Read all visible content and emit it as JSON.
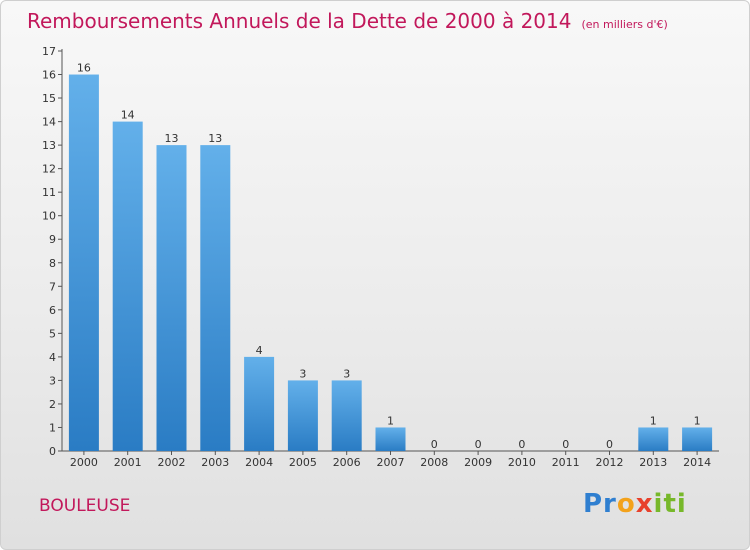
{
  "title": "Remboursements Annuels de la Dette de 2000 à 2014",
  "subtitle": "(en milliers d'€)",
  "commune": "BOULEUSE",
  "logo": "Proxiti",
  "colors": {
    "title": "#c2185b",
    "bar_top": "#63b0ea",
    "bar_bottom": "#2a7cc4"
  },
  "chart_data": {
    "type": "bar",
    "title": "Remboursements Annuels de la Dette de 2000 à 2014",
    "subtitle": "(en milliers d'€)",
    "categories": [
      "2000",
      "2001",
      "2002",
      "2003",
      "2004",
      "2005",
      "2006",
      "2007",
      "2008",
      "2009",
      "2010",
      "2011",
      "2012",
      "2013",
      "2014"
    ],
    "values": [
      16,
      14,
      13,
      13,
      4,
      3,
      3,
      1,
      0,
      0,
      0,
      0,
      0,
      1,
      1
    ],
    "ylim": [
      0,
      17
    ],
    "yticks": [
      0,
      1,
      2,
      3,
      4,
      5,
      6,
      7,
      8,
      9,
      10,
      11,
      12,
      13,
      14,
      15,
      16,
      17
    ],
    "grid": false,
    "legend": "none"
  }
}
